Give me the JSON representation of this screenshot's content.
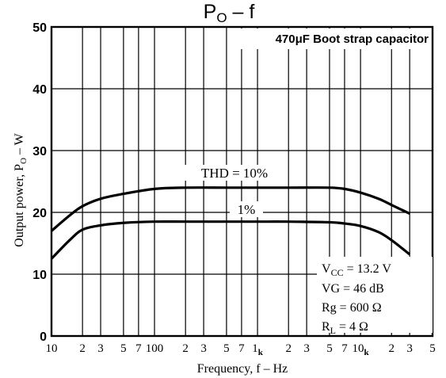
{
  "chart_data": {
    "type": "line",
    "title": "PO – f",
    "xlabel": "Frequency, f – Hz",
    "ylabel": "Output power, PO – W",
    "x_scale": "log",
    "xlim": [
      10,
      50000
    ],
    "ylim": [
      0,
      50
    ],
    "y_ticks": [
      "0",
      "10",
      "20",
      "30",
      "40",
      "50"
    ],
    "x_ticks": [
      {
        "v": 10,
        "label": "10"
      },
      {
        "v": 20,
        "label": "2"
      },
      {
        "v": 30,
        "label": "3"
      },
      {
        "v": 50,
        "label": "5"
      },
      {
        "v": 70,
        "label": "7"
      },
      {
        "v": 100,
        "label": "100"
      },
      {
        "v": 200,
        "label": "2"
      },
      {
        "v": 300,
        "label": "3"
      },
      {
        "v": 500,
        "label": "5"
      },
      {
        "v": 700,
        "label": "7"
      },
      {
        "v": 1000,
        "label": "1k"
      },
      {
        "v": 2000,
        "label": "2"
      },
      {
        "v": 3000,
        "label": "3"
      },
      {
        "v": 5000,
        "label": "5"
      },
      {
        "v": 7000,
        "label": "7"
      },
      {
        "v": 10000,
        "label": "10k"
      },
      {
        "v": 20000,
        "label": "2"
      },
      {
        "v": 30000,
        "label": "3"
      },
      {
        "v": 50000,
        "label": "5"
      }
    ],
    "grid": true,
    "series": [
      {
        "name": "THD = 10%",
        "x": [
          10,
          15,
          20,
          30,
          50,
          100,
          200,
          500,
          1000,
          2000,
          5000,
          7000,
          10000,
          15000,
          20000,
          30000
        ],
        "y": [
          17,
          19.5,
          21,
          22.2,
          23,
          23.8,
          24,
          24,
          24,
          24,
          24,
          23.8,
          23.2,
          22.2,
          21.2,
          19.8
        ]
      },
      {
        "name": "1%",
        "x": [
          10,
          15,
          20,
          30,
          50,
          100,
          200,
          500,
          1000,
          2000,
          5000,
          7000,
          10000,
          15000,
          20000,
          30000
        ],
        "y": [
          12.5,
          15.5,
          17.2,
          17.9,
          18.3,
          18.5,
          18.5,
          18.5,
          18.5,
          18.5,
          18.4,
          18.2,
          17.8,
          16.8,
          15.5,
          13.2
        ]
      }
    ],
    "annotations": {
      "capacitor_note": "470μF Boot strap capacitor",
      "conditions": [
        "VCC = 13.2 V",
        "VG = 46 dB",
        "Rg = 600 Ω",
        "RL = 4 Ω"
      ]
    }
  }
}
